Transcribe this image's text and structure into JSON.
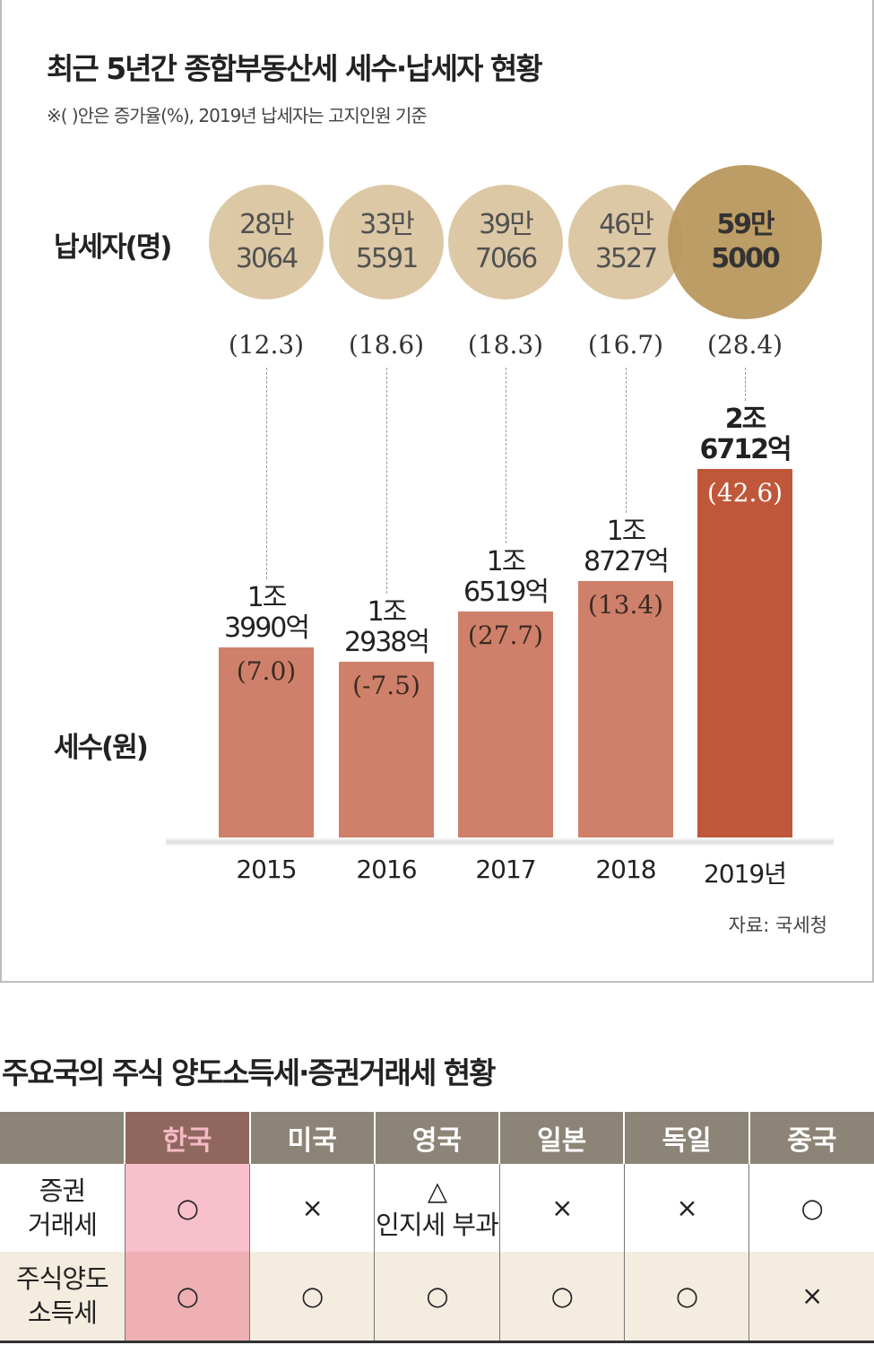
{
  "title": "최근 5년간 종합부동산세 세수·납세자 현황",
  "note": "※(   )안은 증가율(%), 2019년 납세자는 고지인원 기준",
  "taxpayer_label": "납세자(명)",
  "revenue_label": "세수(원)",
  "source": "자료: 국세청",
  "colors": {
    "bubble": "#d6bf96",
    "bubble_highlight": "#b8955a",
    "bar": "#cf806a",
    "bar_highlight": "#c0573a"
  },
  "chart_data": {
    "type": "bar",
    "categories": [
      "2015",
      "2016",
      "2017",
      "2018",
      "2019년"
    ],
    "taxpayers": {
      "values": [
        283064,
        335591,
        397066,
        463527,
        595000
      ],
      "labels": [
        "28만\n3064",
        "33만\n5591",
        "39만\n7066",
        "46만\n3527",
        "59만\n5000"
      ],
      "growth": [
        "(12.3)",
        "(18.6)",
        "(18.3)",
        "(16.7)",
        "(28.4)"
      ]
    },
    "revenue": {
      "values_eok": [
        13990,
        12938,
        16519,
        18727,
        26712
      ],
      "labels": [
        "1조\n3990억",
        "1조\n2938억",
        "1조\n6519억",
        "1조\n8727억",
        "2조\n6712억"
      ],
      "growth": [
        "(7.0)",
        "(-7.5)",
        "(27.7)",
        "(13.4)",
        "(42.6)"
      ]
    },
    "ylim": [
      0,
      26712
    ]
  },
  "table": {
    "title": "주요국의 주식 양도소득세·증권거래세 현황",
    "headers": [
      "",
      "한국",
      "미국",
      "영국",
      "일본",
      "독일",
      "중국"
    ],
    "rows": [
      {
        "label": "증권\n거래세",
        "cells": [
          "○",
          "×",
          "△",
          "×",
          "×",
          "○"
        ],
        "sub": "인지세 부과"
      },
      {
        "label": "주식양도\n소득세",
        "cells": [
          "○",
          "○",
          "○",
          "○",
          "○",
          "×"
        ]
      }
    ]
  }
}
